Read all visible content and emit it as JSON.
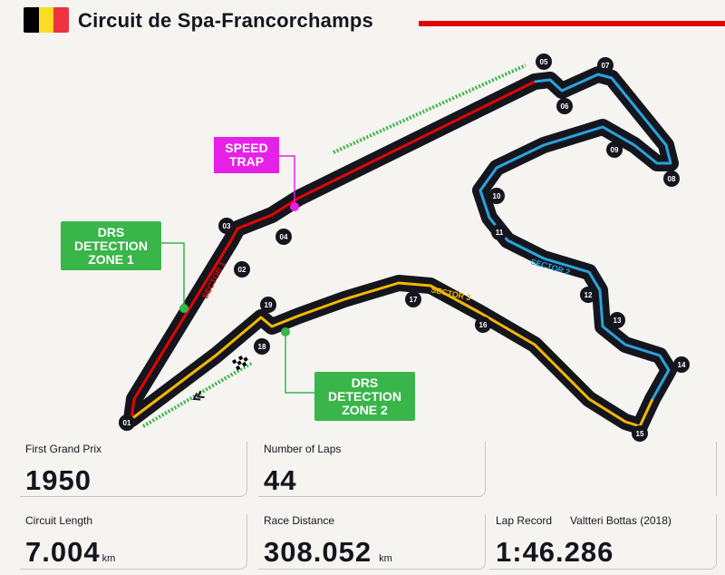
{
  "header": {
    "title": "Circuit de Spa-Francorchamps",
    "flag_colors": [
      "#000000",
      "#fdda24",
      "#ef3340"
    ]
  },
  "callouts": {
    "speed_trap": "SPEED\nTRAP",
    "drs1": "DRS\nDETECTION\nZONE 1",
    "drs2": "DRS\nDETECTION\nZONE 2"
  },
  "sectors": {
    "s1": "SECTOR 1",
    "s2": "SECTOR 2",
    "s3": "SECTOR 3",
    "colors": {
      "s1": "#e10600",
      "s2": "#2aa3dd",
      "s3": "#f5b800"
    }
  },
  "turns": [
    "01",
    "02",
    "03",
    "04",
    "05",
    "06",
    "07",
    "08",
    "09",
    "10",
    "11",
    "12",
    "13",
    "14",
    "15",
    "16",
    "17",
    "18",
    "19"
  ],
  "stats": {
    "first_grand_prix": {
      "label": "First Grand Prix",
      "value": "1950"
    },
    "laps": {
      "label": "Number of Laps",
      "value": "44"
    },
    "circuit_length": {
      "label": "Circuit Length",
      "value": "7.004",
      "unit": "km"
    },
    "race_distance": {
      "label": "Race Distance",
      "value": "308.052",
      "unit": "km"
    },
    "lap_record": {
      "label": "Lap Record",
      "holder": "Valtteri Bottas (2018)",
      "value": "1:46.286"
    }
  },
  "colors": {
    "drs_green": "#39b54a",
    "speed_trap": "#e620e6"
  }
}
